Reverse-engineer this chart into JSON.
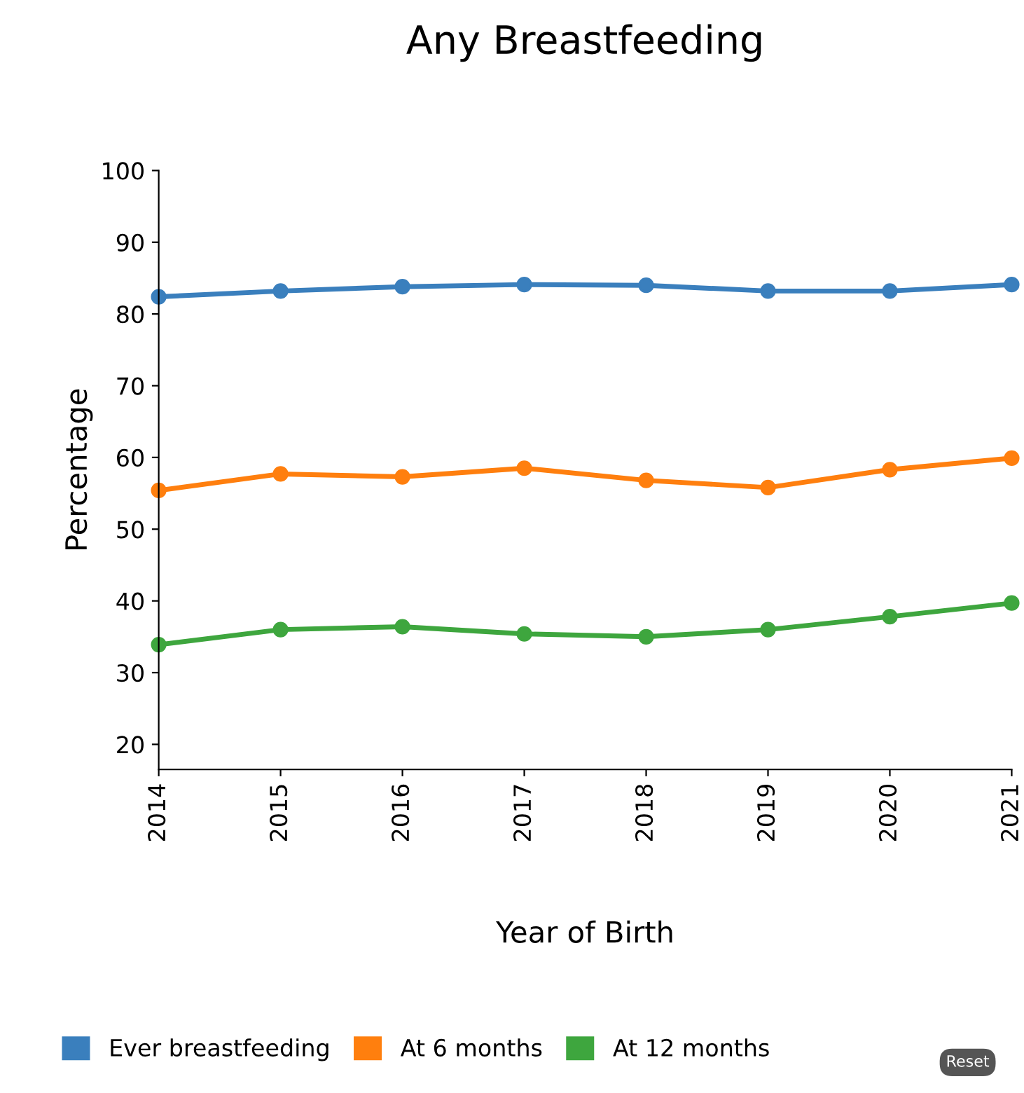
{
  "chart_data": {
    "type": "line",
    "title": "Any Breastfeeding",
    "xlabel": "Year of Birth",
    "ylabel": "Percentage",
    "x": [
      2014,
      2015,
      2016,
      2017,
      2018,
      2019,
      2020,
      2021
    ],
    "series": [
      {
        "name": "Ever breastfeeding",
        "color": "#3a7fbd",
        "values": [
          82.4,
          83.2,
          83.8,
          84.1,
          84.0,
          83.2,
          83.2,
          84.1
        ]
      },
      {
        "name": "At 6 months",
        "color": "#ff7f0e",
        "values": [
          55.4,
          57.7,
          57.3,
          58.5,
          56.8,
          55.8,
          58.3,
          59.9
        ]
      },
      {
        "name": "At 12 months",
        "color": "#3ea63e",
        "values": [
          33.9,
          36.0,
          36.4,
          35.4,
          35.0,
          36.0,
          37.8,
          39.7
        ]
      }
    ],
    "xlim": [
      2014,
      2021
    ],
    "xticks": [
      2014,
      2015,
      2016,
      2017,
      2018,
      2019,
      2020,
      2021
    ],
    "ylim": [
      16.5,
      100
    ],
    "yticks": [
      20,
      30,
      40,
      50,
      60,
      70,
      80,
      90,
      100
    ],
    "marker": "circle",
    "line_style": "solid",
    "grid": false,
    "legend": "bottom",
    "annotations": [
      "Reset"
    ]
  }
}
